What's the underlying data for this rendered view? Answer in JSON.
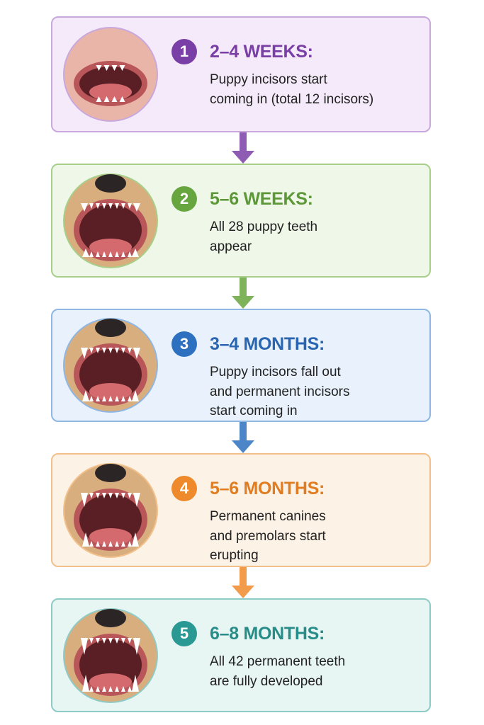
{
  "steps": [
    {
      "number": "1",
      "title": "2–4 WEEKS:",
      "description": [
        "Puppy incisors start",
        "coming in (total 12 incisors)"
      ]
    },
    {
      "number": "2",
      "title": "5–6 WEEKS:",
      "description": [
        "All 28 puppy teeth",
        "appear"
      ]
    },
    {
      "number": "3",
      "title": "3–4 MONTHS:",
      "description": [
        "Puppy incisors fall out",
        "and permanent incisors",
        "start coming in"
      ]
    },
    {
      "number": "4",
      "title": "5–6 MONTHS:",
      "description": [
        "Permanent canines",
        "and premolars start",
        "erupting"
      ]
    },
    {
      "number": "5",
      "title": "6–8 MONTHS:",
      "description": [
        "All 42 permanent teeth",
        "are fully developed"
      ]
    }
  ]
}
